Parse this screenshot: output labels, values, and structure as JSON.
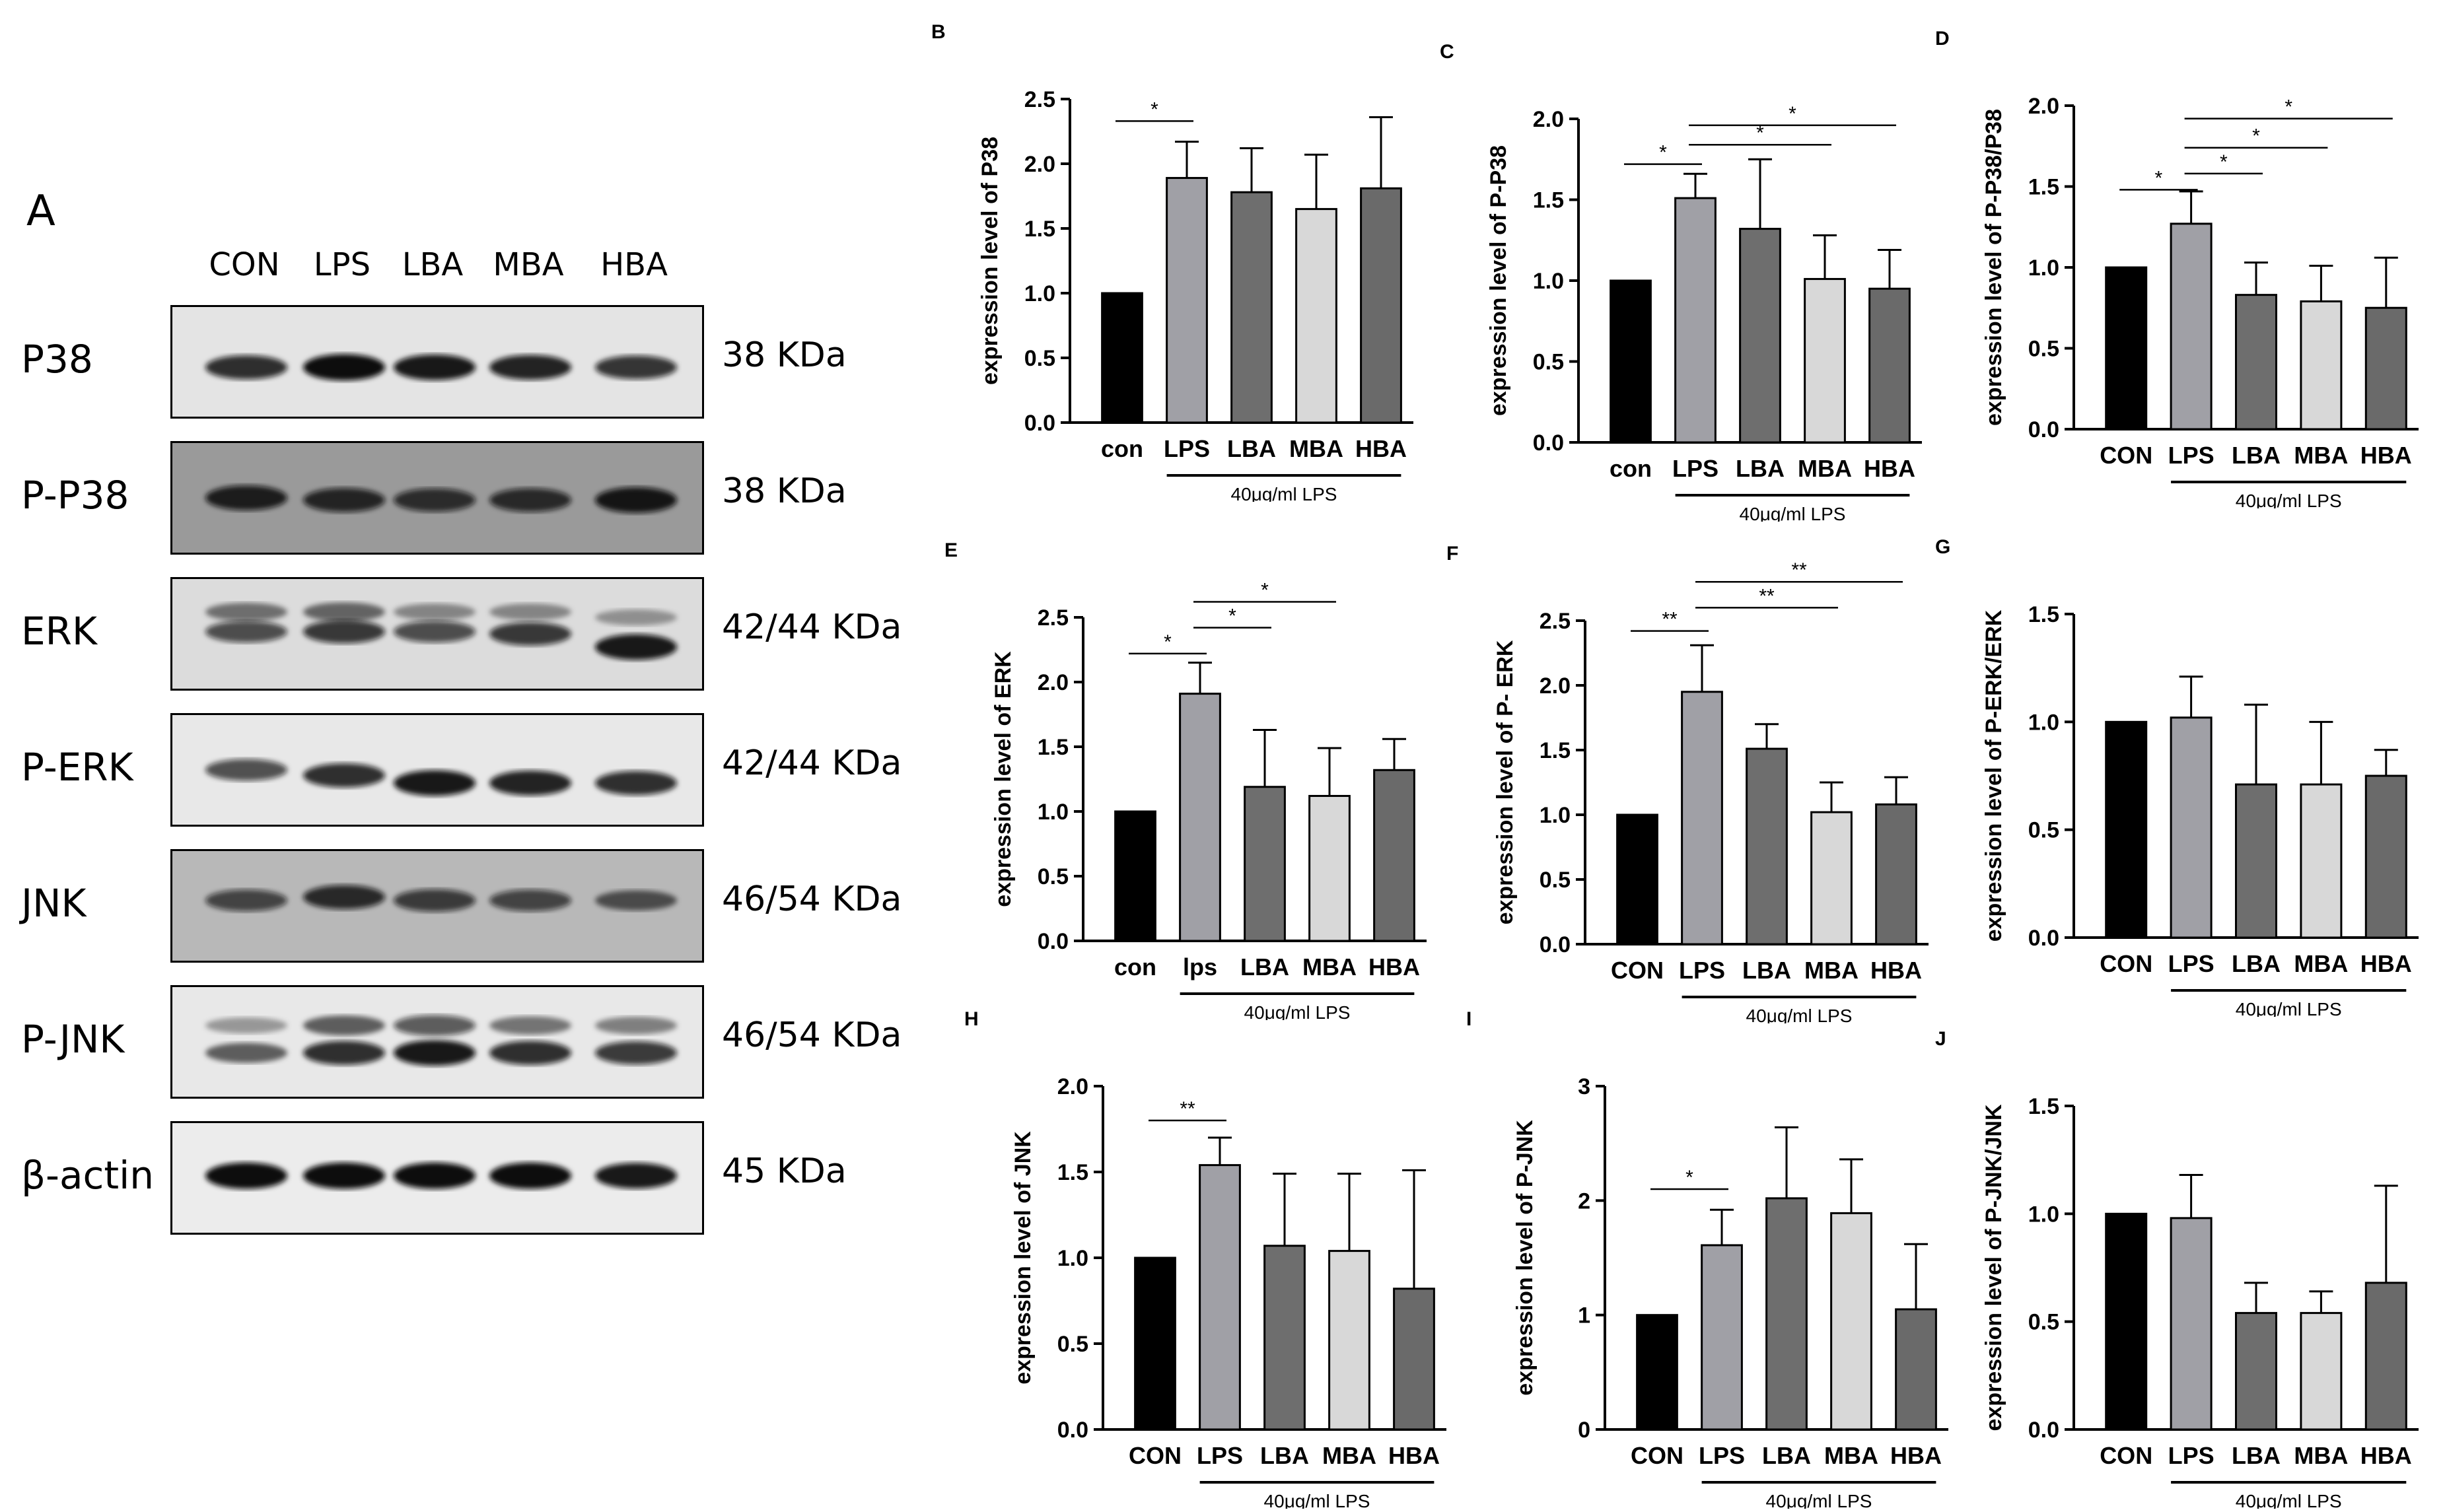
{
  "blot": {
    "letter": "A",
    "lanes": [
      "CON",
      "LPS",
      "LBA",
      "MBA",
      "HBA"
    ],
    "rows": [
      {
        "label": "P38",
        "kda": "38 KDa",
        "bg": "#e4e4e4",
        "bands": [
          [
            0.55,
            0.85
          ],
          [
            0.55,
            1.0
          ],
          [
            0.55,
            0.95
          ],
          [
            0.55,
            0.9
          ],
          [
            0.55,
            0.82
          ]
        ]
      },
      {
        "label": "P-P38",
        "kda": "38 KDa",
        "bg": "#9a9a9a",
        "bands": [
          [
            0.5,
            0.9
          ],
          [
            0.52,
            0.85
          ],
          [
            0.52,
            0.8
          ],
          [
            0.52,
            0.82
          ],
          [
            0.52,
            0.95
          ]
        ]
      },
      {
        "label": "ERK",
        "kda": "42/44 KDa",
        "bg": "#dcdcdc",
        "bands": [
          [
            0.3,
            0.5
          ],
          [
            0.48,
            0.7
          ],
          [
            0.3,
            0.55
          ],
          [
            0.48,
            0.8
          ],
          [
            0.3,
            0.4
          ],
          [
            0.48,
            0.7
          ],
          [
            0.3,
            0.4
          ],
          [
            0.5,
            0.8
          ],
          [
            0.35,
            0.35
          ],
          [
            0.62,
            0.95
          ]
        ]
      },
      {
        "label": "P-ERK",
        "kda": "42/44 KDa",
        "bg": "#e8e8e8",
        "bands": [
          [
            0.5,
            0.7
          ],
          [
            0.55,
            0.85
          ],
          [
            0.62,
            0.95
          ],
          [
            0.62,
            0.9
          ],
          [
            0.62,
            0.85
          ]
        ]
      },
      {
        "label": "JNK",
        "kda": "46/54 KDa",
        "bg": "#b8b8b8",
        "bands": [
          [
            0.45,
            0.7
          ],
          [
            0.42,
            0.85
          ],
          [
            0.45,
            0.75
          ],
          [
            0.45,
            0.7
          ],
          [
            0.45,
            0.6
          ]
        ]
      },
      {
        "label": "P-JNK",
        "kda": "46/54 KDa",
        "bg": "#e8e8e8",
        "bands": [
          [
            0.35,
            0.35
          ],
          [
            0.6,
            0.6
          ],
          [
            0.35,
            0.6
          ],
          [
            0.6,
            0.85
          ],
          [
            0.35,
            0.65
          ],
          [
            0.6,
            0.95
          ],
          [
            0.35,
            0.5
          ],
          [
            0.6,
            0.85
          ],
          [
            0.35,
            0.45
          ],
          [
            0.6,
            0.8
          ]
        ]
      },
      {
        "label": "β-actin",
        "kda": "45 KDa",
        "bg": "#ececec",
        "bands": [
          [
            0.48,
            1.0
          ],
          [
            0.48,
            1.0
          ],
          [
            0.48,
            1.0
          ],
          [
            0.48,
            1.0
          ],
          [
            0.48,
            0.95
          ]
        ]
      }
    ]
  },
  "chart_data": [
    {
      "letter": "B",
      "type": "bar",
      "ylabel": "expression level of P38",
      "ylim": [
        0,
        2.5
      ],
      "yticks": [
        "0.0",
        "0.5",
        "1.0",
        "1.5",
        "2.0",
        "2.5"
      ],
      "categories": [
        "con",
        "LPS",
        "LBA",
        "MBA",
        "HBA"
      ],
      "values": [
        1.0,
        1.89,
        1.78,
        1.65,
        1.81
      ],
      "errors": [
        0,
        0.28,
        0.34,
        0.42,
        0.55
      ],
      "colors": [
        "#000000",
        "#a0a0a6",
        "#6e6e6e",
        "#d8d8d8",
        "#6a6a6a"
      ],
      "bracket_label": "40μg/ml LPS",
      "sig": [
        {
          "from": 0,
          "to": 1,
          "label": "*",
          "y": 2.33
        }
      ],
      "bold_categories": true
    },
    {
      "letter": "C",
      "type": "bar",
      "ylabel": "expression level of P-P38",
      "ylim": [
        0,
        2.0
      ],
      "yticks": [
        "0.0",
        "0.5",
        "1.0",
        "1.5",
        "2.0"
      ],
      "categories": [
        "con",
        "LPS",
        "LBA",
        "MBA",
        "HBA"
      ],
      "values": [
        1.0,
        1.51,
        1.32,
        1.01,
        0.95
      ],
      "errors": [
        0,
        0.15,
        0.43,
        0.27,
        0.24
      ],
      "colors": [
        "#000000",
        "#a0a0a6",
        "#6e6e6e",
        "#d8d8d8",
        "#6a6a6a"
      ],
      "bracket_label": "40μg/ml LPS",
      "sig": [
        {
          "from": 0,
          "to": 1,
          "label": "*",
          "y": 1.72
        },
        {
          "from": 1,
          "to": 3,
          "label": "*",
          "y": 1.84
        },
        {
          "from": 1,
          "to": 4,
          "label": "*",
          "y": 1.96
        }
      ],
      "bold_categories": true
    },
    {
      "letter": "D",
      "type": "bar",
      "ylabel": "expression level of P-P38/P38",
      "ylim": [
        0,
        2.0
      ],
      "yticks": [
        "0.0",
        "0.5",
        "1.0",
        "1.5",
        "2.0"
      ],
      "categories": [
        "CON",
        "LPS",
        "LBA",
        "MBA",
        "HBA"
      ],
      "values": [
        1.0,
        1.27,
        0.83,
        0.79,
        0.75
      ],
      "errors": [
        0,
        0.2,
        0.2,
        0.22,
        0.31
      ],
      "colors": [
        "#000000",
        "#a0a0a6",
        "#6e6e6e",
        "#d8d8d8",
        "#6a6a6a"
      ],
      "bracket_label": "40μg/ml LPS",
      "sig": [
        {
          "from": 0,
          "to": 1,
          "label": "*",
          "y": 1.48
        },
        {
          "from": 1,
          "to": 2,
          "label": "*",
          "y": 1.58
        },
        {
          "from": 1,
          "to": 3,
          "label": "*",
          "y": 1.74
        },
        {
          "from": 1,
          "to": 4,
          "label": "*",
          "y": 1.92
        }
      ],
      "bold_categories": true
    },
    {
      "letter": "E",
      "type": "bar",
      "ylabel": "expression level of ERK",
      "ylim": [
        0,
        2.5
      ],
      "yticks": [
        "0.0",
        "0.5",
        "1.0",
        "1.5",
        "2.0",
        "2.5"
      ],
      "categories": [
        "con",
        "lps",
        "LBA",
        "MBA",
        "HBA"
      ],
      "values": [
        1.0,
        1.91,
        1.19,
        1.12,
        1.32
      ],
      "errors": [
        0,
        0.24,
        0.44,
        0.37,
        0.24
      ],
      "colors": [
        "#000000",
        "#a0a0a6",
        "#6e6e6e",
        "#d8d8d8",
        "#6a6a6a"
      ],
      "bracket_label": "40μg/ml LPS",
      "sig": [
        {
          "from": 0,
          "to": 1,
          "label": "*",
          "y": 2.22
        },
        {
          "from": 1,
          "to": 2,
          "label": "*",
          "y": 2.42
        },
        {
          "from": 1,
          "to": 3,
          "label": "*",
          "y": 2.62
        }
      ],
      "bold_categories": true
    },
    {
      "letter": "F",
      "type": "bar",
      "ylabel": "expression level of P- ERK",
      "ylim": [
        0,
        2.5
      ],
      "yticks": [
        "0.0",
        "0.5",
        "1.0",
        "1.5",
        "2.0",
        "2.5"
      ],
      "categories": [
        "CON",
        "LPS",
        "LBA",
        "MBA",
        "HBA"
      ],
      "values": [
        1.0,
        1.95,
        1.51,
        1.02,
        1.08
      ],
      "errors": [
        0,
        0.36,
        0.19,
        0.23,
        0.21
      ],
      "colors": [
        "#000000",
        "#a0a0a6",
        "#6e6e6e",
        "#d8d8d8",
        "#6a6a6a"
      ],
      "bracket_label": "40μg/ml LPS",
      "sig": [
        {
          "from": 0,
          "to": 1,
          "label": "**",
          "y": 2.42
        },
        {
          "from": 1,
          "to": 3,
          "label": "**",
          "y": 2.6
        },
        {
          "from": 1,
          "to": 4,
          "label": "**",
          "y": 2.8
        }
      ],
      "bold_categories": true
    },
    {
      "letter": "G",
      "type": "bar",
      "ylabel": "expression level of P-ERK/ERK",
      "ylim": [
        0,
        1.5
      ],
      "yticks": [
        "0.0",
        "0.5",
        "1.0",
        "1.5"
      ],
      "categories": [
        "CON",
        "LPS",
        "LBA",
        "MBA",
        "HBA"
      ],
      "values": [
        1.0,
        1.02,
        0.71,
        0.71,
        0.75
      ],
      "errors": [
        0,
        0.19,
        0.37,
        0.29,
        0.12
      ],
      "colors": [
        "#000000",
        "#a0a0a6",
        "#6e6e6e",
        "#d8d8d8",
        "#6a6a6a"
      ],
      "bracket_label": "40μg/ml LPS",
      "sig": [],
      "bold_categories": true
    },
    {
      "letter": "H",
      "type": "bar",
      "ylabel": "expression level of JNK",
      "ylim": [
        0,
        2.0
      ],
      "yticks": [
        "0.0",
        "0.5",
        "1.0",
        "1.5",
        "2.0"
      ],
      "categories": [
        "CON",
        "LPS",
        "LBA",
        "MBA",
        "HBA"
      ],
      "values": [
        1.0,
        1.54,
        1.07,
        1.04,
        0.82
      ],
      "errors": [
        0,
        0.16,
        0.42,
        0.45,
        0.69
      ],
      "colors": [
        "#000000",
        "#a0a0a6",
        "#6e6e6e",
        "#d8d8d8",
        "#6a6a6a"
      ],
      "bracket_label": "40μg/ml LPS",
      "sig": [
        {
          "from": 0,
          "to": 1,
          "label": "**",
          "y": 1.8
        }
      ],
      "bold_categories": true
    },
    {
      "letter": "I",
      "type": "bar",
      "ylabel": "expression level of P-JNK",
      "ylim": [
        0,
        3
      ],
      "yticks": [
        "0",
        "1",
        "2",
        "3"
      ],
      "categories": [
        "CON",
        "LPS",
        "LBA",
        "MBA",
        "HBA"
      ],
      "values": [
        1.0,
        1.61,
        2.02,
        1.89,
        1.05
      ],
      "errors": [
        0,
        0.31,
        0.62,
        0.47,
        0.57
      ],
      "colors": [
        "#000000",
        "#a0a0a6",
        "#6e6e6e",
        "#d8d8d8",
        "#6a6a6a"
      ],
      "bracket_label": "40μg/ml LPS",
      "sig": [
        {
          "from": 0,
          "to": 1,
          "label": "*",
          "y": 2.1
        }
      ],
      "bold_categories": true
    },
    {
      "letter": "J",
      "type": "bar",
      "ylabel": "expression level of P-JNK/JNK",
      "ylim": [
        0,
        1.5
      ],
      "yticks": [
        "0.0",
        "0.5",
        "1.0",
        "1.5"
      ],
      "categories": [
        "CON",
        "LPS",
        "LBA",
        "MBA",
        "HBA"
      ],
      "values": [
        1.0,
        0.98,
        0.54,
        0.54,
        0.68
      ],
      "errors": [
        0,
        0.2,
        0.14,
        0.1,
        0.45
      ],
      "colors": [
        "#000000",
        "#a0a0a6",
        "#6e6e6e",
        "#d8d8d8",
        "#6a6a6a"
      ],
      "bracket_label": "40μg/ml LPS",
      "sig": [],
      "bold_categories": true
    }
  ]
}
